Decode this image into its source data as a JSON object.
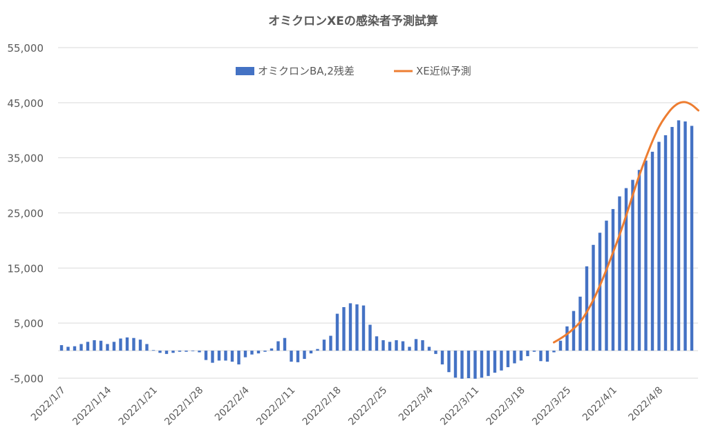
{
  "chart_data": {
    "type": "bar",
    "title": "オミクロンXEの感染者予測試算",
    "xlabel": "",
    "ylabel": "",
    "ylim": [
      -5000,
      55000
    ],
    "y_ticks": [
      -5000,
      5000,
      15000,
      25000,
      35000,
      45000,
      55000
    ],
    "y_tick_labels": [
      "-5,000",
      "5,000",
      "15,000",
      "25,000",
      "35,000",
      "45,000",
      "55,000"
    ],
    "grid": true,
    "legend_position": "top-center",
    "start_date": "2022/1/7",
    "x_tick_labels": [
      "2022/1/7",
      "2022/1/14",
      "2022/1/21",
      "2022/1/28",
      "2022/2/4",
      "2022/2/11",
      "2022/2/18",
      "2022/2/25",
      "2022/3/4",
      "2022/3/11",
      "2022/3/18",
      "2022/3/25",
      "2022/4/1",
      "2022/4/8"
    ],
    "colors": {
      "bar": "#4472C4",
      "line": "#ED7D31",
      "grid": "#D9D9D9",
      "text": "#595959"
    },
    "series": [
      {
        "name": "オミクロンBA,2残差",
        "type": "bar",
        "start_index": 0,
        "values": [
          1000,
          700,
          800,
          1200,
          1600,
          1900,
          1800,
          1200,
          1600,
          2200,
          2400,
          2300,
          2000,
          1200,
          100,
          -400,
          -600,
          -400,
          -200,
          -200,
          -100,
          -300,
          -1700,
          -2200,
          -1800,
          -1800,
          -2000,
          -2500,
          -1200,
          -700,
          -500,
          -200,
          400,
          1700,
          2300,
          -2000,
          -2100,
          -1500,
          -500,
          300,
          2000,
          2700,
          6700,
          7900,
          8600,
          8400,
          8200,
          4700,
          2600,
          1900,
          1600,
          1900,
          1700,
          700,
          2100,
          1900,
          700,
          -600,
          -2500,
          -3900,
          -4900,
          -5100,
          -5000,
          -5100,
          -4900,
          -4600,
          -4000,
          -3600,
          -3000,
          -2300,
          -1800,
          -1000,
          -200,
          -1900,
          -2000,
          -300,
          1800,
          4400,
          7200,
          9800,
          15300,
          19200,
          21400,
          23600,
          25700,
          28000,
          29500,
          31000,
          32800,
          34500,
          36100,
          37900,
          39100,
          40600,
          41800,
          41600,
          40800
        ]
      },
      {
        "name": "XE近似予測",
        "type": "line",
        "start_index": 75,
        "values": [
          1500,
          2200,
          3000,
          4000,
          5200,
          7000,
          9200,
          11800,
          14700,
          17800,
          21000,
          24500,
          28200,
          31800,
          35000,
          38000,
          40600,
          42500,
          44000,
          44900,
          45100,
          44600,
          43600
        ]
      }
    ]
  }
}
